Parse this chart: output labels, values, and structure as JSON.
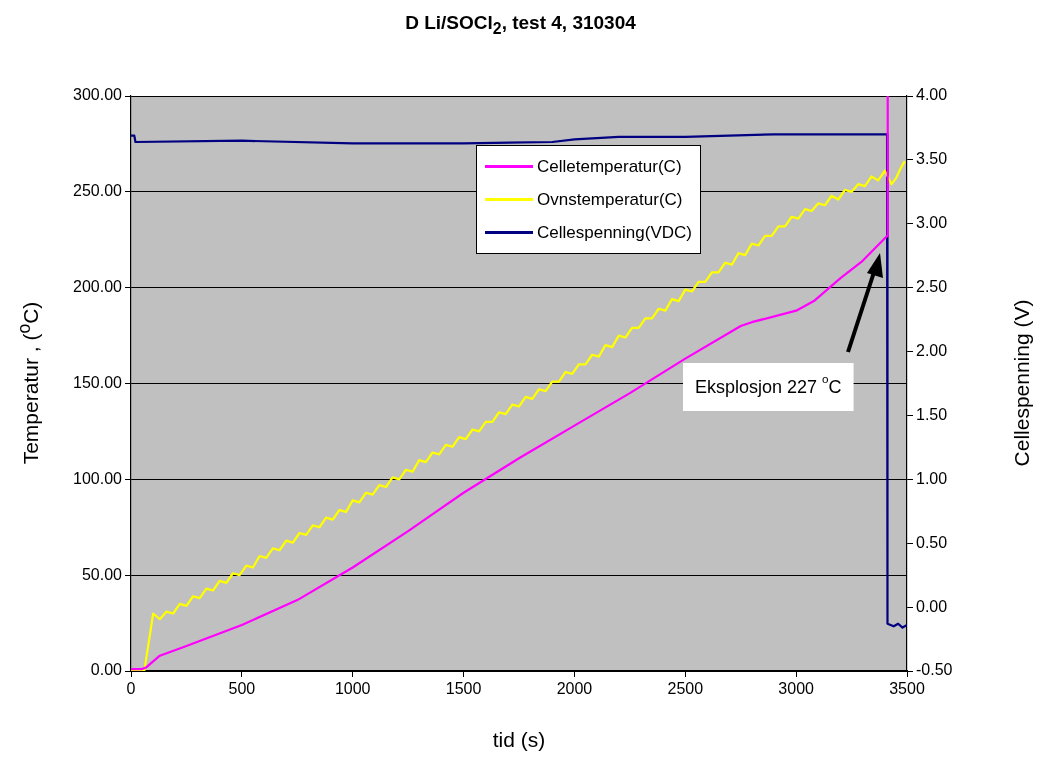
{
  "chart_data": {
    "type": "line",
    "title": "D Li/SOCl$_{2}$, test 4, 310304",
    "xlabel": "tid (s)",
    "ylabel": "Temperatur , ($^{o}$C)",
    "y2label": "Cellespenning (V)",
    "annotations": [
      "Eksplosjon 227 $^{o}$C"
    ],
    "series": [
      {
        "name": "Celletemperatur(C)",
        "color": "#ff00ff",
        "x": [
          0,
          50,
          70,
          100,
          130,
          250,
          500,
          750,
          1000,
          1250,
          1500,
          1750,
          2000,
          2250,
          2500,
          2750,
          2800,
          3000,
          3080,
          3200,
          3300,
          3410,
          3413
        ],
        "values": [
          1,
          1,
          2,
          5,
          8,
          13,
          24,
          37,
          54,
          73,
          93,
          111,
          128,
          145,
          163,
          180,
          182,
          188,
          193,
          205,
          214,
          227,
          300
        ]
      },
      {
        "name": "Ovnstemperatur(C)",
        "color": "#ffff00",
        "x": [
          0,
          60,
          80,
          100,
          130,
          160,
          190,
          220,
          250,
          280,
          310,
          340,
          370,
          400,
          430,
          460,
          490,
          520,
          550,
          580,
          610,
          640,
          670,
          700,
          730,
          760,
          790,
          820,
          850,
          880,
          910,
          940,
          970,
          1000,
          1030,
          1060,
          1090,
          1120,
          1150,
          1180,
          1210,
          1240,
          1270,
          1300,
          1330,
          1360,
          1390,
          1420,
          1450,
          1480,
          1510,
          1540,
          1570,
          1600,
          1630,
          1660,
          1690,
          1720,
          1750,
          1780,
          1810,
          1840,
          1870,
          1900,
          1930,
          1960,
          1990,
          2020,
          2050,
          2080,
          2110,
          2140,
          2170,
          2200,
          2230,
          2260,
          2290,
          2320,
          2350,
          2380,
          2410,
          2440,
          2470,
          2500,
          2530,
          2560,
          2590,
          2620,
          2650,
          2680,
          2710,
          2740,
          2770,
          2800,
          2830,
          2860,
          2890,
          2920,
          2950,
          2980,
          3010,
          3040,
          3070,
          3100,
          3130,
          3160,
          3190,
          3220,
          3250,
          3280,
          3310,
          3340,
          3370,
          3400,
          3430,
          3450,
          3470,
          3490
        ],
        "values": [
          0,
          0,
          15,
          30,
          27,
          31,
          30,
          35,
          34,
          39,
          38,
          43,
          42,
          47,
          46,
          51,
          50,
          55,
          54,
          60,
          59,
          64,
          63,
          68,
          67,
          72,
          71,
          76,
          75,
          80,
          79,
          84,
          83,
          89,
          88,
          93,
          92,
          97,
          96,
          101,
          100,
          105,
          104,
          110,
          109,
          114,
          113,
          118,
          117,
          122,
          121,
          126,
          125,
          130,
          130,
          135,
          134,
          139,
          138,
          143,
          142,
          147,
          146,
          151,
          151,
          156,
          155,
          160,
          160,
          165,
          164,
          170,
          169,
          175,
          174,
          179,
          179,
          184,
          184,
          189,
          188,
          194,
          193,
          199,
          198,
          203,
          203,
          208,
          208,
          213,
          212,
          218,
          217,
          223,
          222,
          227,
          227,
          232,
          232,
          237,
          236,
          241,
          240,
          244,
          243,
          248,
          246,
          251,
          250,
          254,
          253,
          258,
          256,
          261,
          254,
          257,
          262,
          266
        ]
      },
      {
        "name": "Cellespenning(VDC)",
        "color": "#000080",
        "axis": "y2",
        "x": [
          0,
          15,
          20,
          500,
          1000,
          1500,
          1900,
          2000,
          2200,
          2500,
          2900,
          3100,
          3410,
          3412,
          3440,
          3460,
          3480,
          3500
        ],
        "values": [
          3.69,
          3.69,
          3.64,
          3.65,
          3.63,
          3.63,
          3.64,
          3.66,
          3.68,
          3.68,
          3.7,
          3.7,
          3.7,
          -0.13,
          -0.15,
          -0.13,
          -0.16,
          -0.14
        ]
      }
    ],
    "xlim": [
      0,
      3500
    ],
    "xticks": [
      0,
      500,
      1000,
      1500,
      2000,
      2500,
      3000,
      3500
    ],
    "ylim": [
      0,
      300
    ],
    "yticks": [
      {
        "value": 0,
        "label": "0.00"
      },
      {
        "value": 50,
        "label": "50.00"
      },
      {
        "value": 100,
        "label": "100.00"
      },
      {
        "value": 150,
        "label": "150.00"
      },
      {
        "value": 200,
        "label": "200.00"
      },
      {
        "value": 250,
        "label": "250.00"
      },
      {
        "value": 300,
        "label": "300.00"
      }
    ],
    "y2lim": [
      -0.5,
      4
    ],
    "y2ticks": [
      {
        "value": -0.5,
        "label": "-0.50"
      },
      {
        "value": 0,
        "label": "0.00"
      },
      {
        "value": 0.5,
        "label": "0.50"
      },
      {
        "value": 1,
        "label": "1.00"
      },
      {
        "value": 1.5,
        "label": "1.50"
      },
      {
        "value": 2,
        "label": "2.00"
      },
      {
        "value": 2.5,
        "label": "2.50"
      },
      {
        "value": 3,
        "label": "3.00"
      },
      {
        "value": 3.5,
        "label": "3.50"
      },
      {
        "value": 4,
        "label": "4.00"
      }
    ],
    "grid": "y",
    "legend": "top right"
  }
}
